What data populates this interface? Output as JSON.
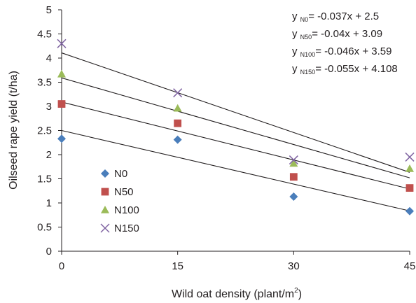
{
  "chart_data": {
    "type": "scatter",
    "xlabel": "Wild oat density (plant/m",
    "xlabel_sup": "2",
    "xlabel_end": ")",
    "ylabel": "Oilseed rape yield (t/ha)",
    "x": [
      0,
      15,
      30,
      45
    ],
    "x_ticks": [
      "0",
      "15",
      "30",
      "45"
    ],
    "y_ticks": [
      "0",
      "0.5",
      "1",
      "1.5",
      "2",
      "2.5",
      "3",
      "3.5",
      "4",
      "4.5",
      "5"
    ],
    "xlim": [
      0,
      45
    ],
    "ylim": [
      0,
      5
    ],
    "grid": false,
    "legend_position": "left-center",
    "series": [
      {
        "name": "N0",
        "marker": "diamond",
        "color": "#4a7ebb",
        "values": [
          2.33,
          2.31,
          1.13,
          0.83
        ],
        "fit": {
          "slope": -0.037,
          "intercept": 2.5
        }
      },
      {
        "name": "N50",
        "marker": "square",
        "color": "#c0504d",
        "values": [
          3.05,
          2.65,
          1.54,
          1.31
        ],
        "fit": {
          "slope": -0.04,
          "intercept": 3.09
        }
      },
      {
        "name": "N100",
        "marker": "triangle",
        "color": "#9bbb59",
        "values": [
          3.67,
          2.96,
          1.82,
          1.71
        ],
        "fit": {
          "slope": -0.046,
          "intercept": 3.59
        }
      },
      {
        "name": "N150",
        "marker": "x",
        "color": "#8064a2",
        "values": [
          4.3,
          3.28,
          1.89,
          1.95
        ],
        "fit": {
          "slope": -0.055,
          "intercept": 4.108
        }
      }
    ],
    "equations": [
      {
        "y": "y",
        "sub": "N0",
        "rhs": "= -0.037x + 2.5"
      },
      {
        "y": "y",
        "sub": "N50",
        "rhs": "= -0.04x + 3.09"
      },
      {
        "y": "y",
        "sub": "N100",
        "rhs": "= -0.046x + 3.59"
      },
      {
        "y": "y",
        "sub": "N150",
        "rhs": "= -0.055x + 4.108"
      }
    ]
  }
}
